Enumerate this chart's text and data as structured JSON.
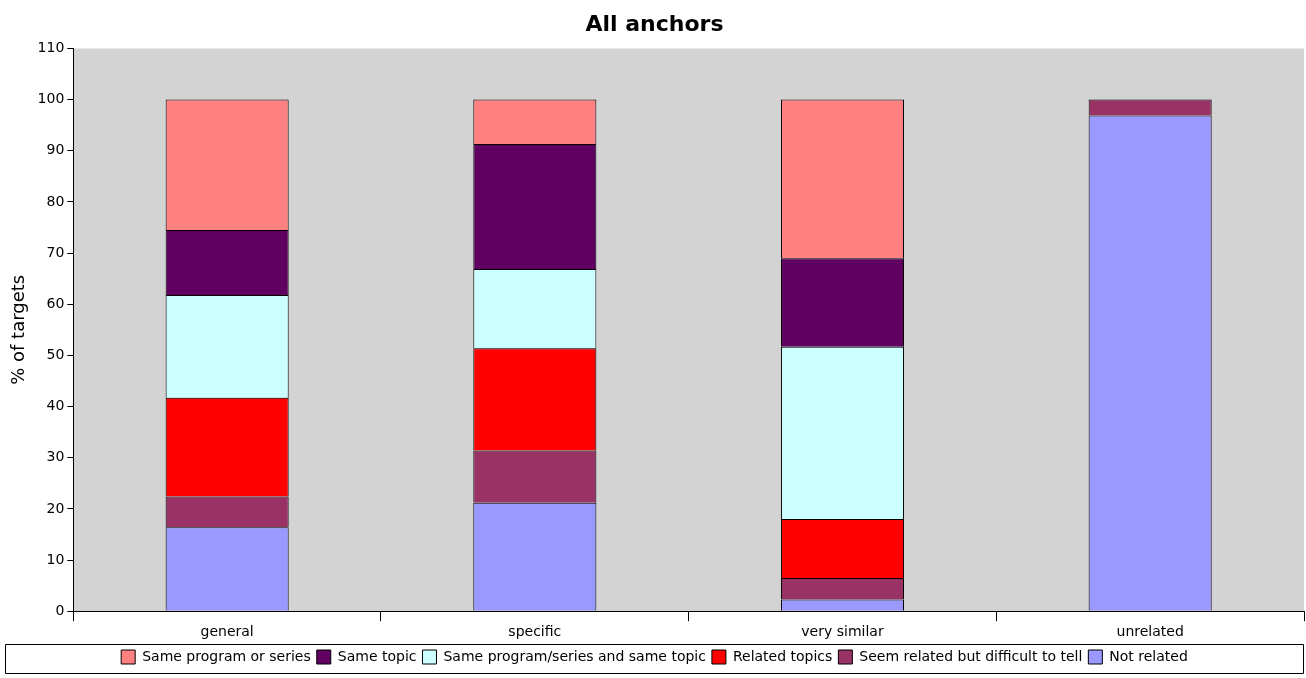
{
  "chart_data": {
    "type": "bar",
    "title": "All anchors",
    "ylabel": "% of targets",
    "categories": [
      "general",
      "specific",
      "very similar",
      "unrelated"
    ],
    "stacked": true,
    "ylim": [
      0,
      110
    ],
    "yticks": [
      0,
      10,
      20,
      30,
      40,
      50,
      60,
      70,
      80,
      90,
      100,
      110
    ],
    "grid": false,
    "legend": "bottom",
    "series": [
      {
        "name": "Not related",
        "color": "#9999ff",
        "values": [
          16.4,
          21.2,
          2.3,
          96.9
        ]
      },
      {
        "name": "Seem related but difficult to tell",
        "color": "#993366",
        "values": [
          6.0,
          10.2,
          4.2,
          3.1
        ]
      },
      {
        "name": "Related topics",
        "color": "#ff0000",
        "values": [
          19.3,
          20.0,
          11.5,
          0
        ]
      },
      {
        "name": "Same program/series and same topic",
        "color": "#ccffff",
        "values": [
          20.1,
          15.5,
          33.7,
          0
        ]
      },
      {
        "name": "Same topic",
        "color": "#600060",
        "values": [
          12.7,
          24.4,
          17.3,
          0
        ]
      },
      {
        "name": "Same program or series",
        "color": "#ff8080",
        "values": [
          25.5,
          8.7,
          31.0,
          0
        ]
      }
    ]
  }
}
